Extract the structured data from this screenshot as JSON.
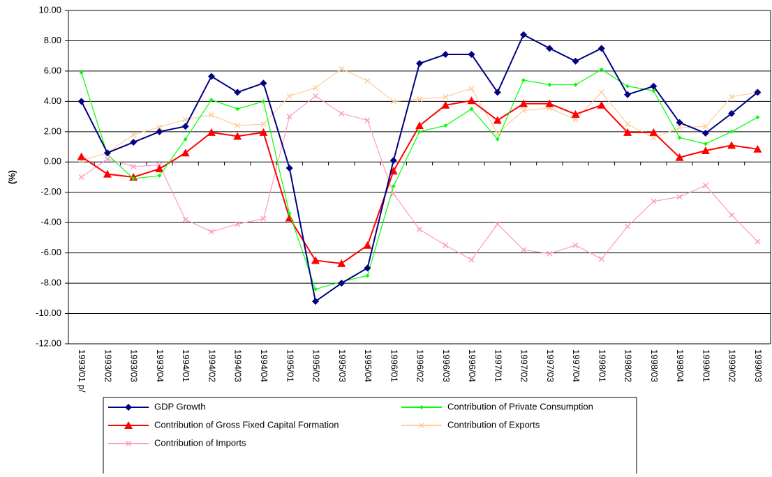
{
  "chart_data": {
    "type": "line",
    "y_label": "(%)",
    "categories": [
      "1993/01 p/",
      "1993/02",
      "1993/03",
      "1993/04",
      "1994/01",
      "1994/02",
      "1994/03",
      "1994/04",
      "1995/01",
      "1995/02",
      "1995/03",
      "1995/04",
      "1996/01",
      "1996/02",
      "1996/03",
      "1996/04",
      "1997/01",
      "1997/02",
      "1997/03",
      "1997/04",
      "1998/01",
      "1998/02",
      "1998/03",
      "1998/04",
      "1999/01",
      "1999/02",
      "1999/03"
    ],
    "series": [
      {
        "name": "GDP Growth",
        "color": "#000080",
        "marker": "diamond",
        "values": [
          4.0,
          0.6,
          1.3,
          2.0,
          2.35,
          5.65,
          4.6,
          5.2,
          -0.4,
          -9.2,
          -8.0,
          -7.0,
          0.1,
          6.5,
          7.1,
          7.1,
          4.6,
          8.4,
          7.5,
          6.65,
          7.5,
          4.45,
          5.0,
          2.6,
          1.9,
          3.2,
          4.6
        ]
      },
      {
        "name": "Contribution of Private Consumption",
        "color": "#00ff00",
        "marker": "small-diamond",
        "values": [
          5.9,
          0.5,
          -1.1,
          -0.9,
          1.5,
          4.1,
          3.5,
          4.0,
          -3.4,
          -8.4,
          -7.9,
          -7.5,
          -1.6,
          2.0,
          2.4,
          3.5,
          1.5,
          5.4,
          5.1,
          5.1,
          6.1,
          5.0,
          4.7,
          1.6,
          1.2,
          2.0,
          2.95
        ]
      },
      {
        "name": "Contribution of Gross Fixed Capital Formation",
        "color": "#ff0000",
        "marker": "triangle",
        "values": [
          0.35,
          -0.8,
          -1.0,
          -0.45,
          0.6,
          1.95,
          1.7,
          1.95,
          -3.7,
          -6.5,
          -6.7,
          -5.5,
          -0.6,
          2.4,
          3.75,
          4.05,
          2.75,
          3.85,
          3.85,
          3.15,
          3.75,
          1.95,
          1.95,
          0.3,
          0.75,
          1.1,
          0.85
        ]
      },
      {
        "name": "Contribution of  Exports",
        "color": "#ffcc99",
        "marker": "x",
        "values": [
          0.1,
          0.6,
          1.8,
          2.3,
          2.8,
          3.1,
          2.4,
          2.5,
          4.35,
          4.9,
          6.15,
          5.35,
          4.0,
          4.15,
          4.3,
          4.85,
          1.9,
          3.4,
          3.55,
          2.8,
          4.6,
          2.5,
          1.6,
          2.25,
          2.35,
          4.3,
          4.6
        ]
      },
      {
        "name": "Contribution of Imports",
        "color": "#ff99cc",
        "marker": "x",
        "values": [
          -1.0,
          0.2,
          -0.3,
          -0.2,
          -3.8,
          -4.6,
          -4.1,
          -3.75,
          3.0,
          4.35,
          3.2,
          2.75,
          -2.1,
          -4.45,
          -5.5,
          -6.45,
          -4.1,
          -5.8,
          -6.05,
          -5.5,
          -6.4,
          -4.25,
          -2.6,
          -2.3,
          -1.55,
          -3.5,
          -5.25
        ]
      }
    ],
    "ylim": [
      -12,
      10
    ],
    "yticks": [
      {
        "value": -12,
        "label": "-12.00"
      },
      {
        "value": -10,
        "label": "-10.00"
      },
      {
        "value": -8,
        "label": "-8.00"
      },
      {
        "value": -6,
        "label": "-6.00"
      },
      {
        "value": -4,
        "label": "-4.00"
      },
      {
        "value": -2,
        "label": "-2.00"
      },
      {
        "value": 0,
        "label": "0.00"
      },
      {
        "value": 2,
        "label": "2.00"
      },
      {
        "value": 4,
        "label": "4.00"
      },
      {
        "value": 6,
        "label": "6.00"
      },
      {
        "value": 8,
        "label": "8.00"
      },
      {
        "value": 10,
        "label": "10.00"
      }
    ],
    "grid": true,
    "legend_position": "bottom"
  }
}
